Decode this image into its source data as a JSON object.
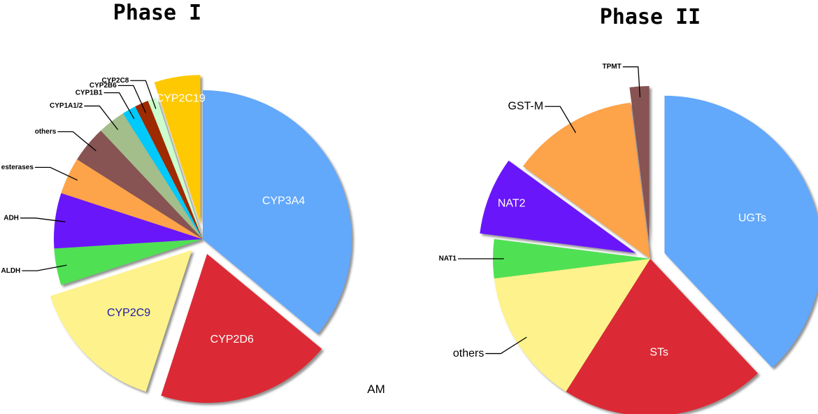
{
  "chart_data": [
    {
      "type": "pie",
      "title": "Phase I",
      "categories": [
        "CYP3A4",
        "CYP2D6",
        "CYP2C9",
        "ALDH",
        "ADH",
        "esterases",
        "others",
        "CYP1A1/2",
        "CYP1B1",
        "CYP2B6",
        "CYP2C8",
        "CYP2C19"
      ],
      "values": [
        36,
        19,
        15,
        4,
        6,
        4,
        4,
        3,
        1.5,
        1.5,
        1,
        5
      ],
      "colors": [
        "#62a8fb",
        "#db2b34",
        "#fdf28b",
        "#4fe152",
        "#6a12fb",
        "#fda348",
        "#875253",
        "#a3be8b",
        "#04c9fb",
        "#9e2c04",
        "#ccfdcc",
        "#fec903"
      ],
      "exploded": [
        false,
        true,
        true,
        false,
        false,
        false,
        false,
        false,
        false,
        false,
        false,
        true
      ],
      "annotation": "AM"
    },
    {
      "type": "pie",
      "title": "Phase II",
      "categories": [
        "UGTs",
        "STs",
        "others",
        "NAT1",
        "NAT2",
        "GST-M",
        "TPMT"
      ],
      "values": [
        38,
        21,
        14,
        4,
        8,
        13,
        2
      ],
      "colors": [
        "#62a8fb",
        "#db2b34",
        "#fdf28b",
        "#4fe152",
        "#6a12fb",
        "#fda348",
        "#875253"
      ],
      "exploded": [
        true,
        false,
        false,
        false,
        true,
        false,
        true
      ]
    }
  ]
}
